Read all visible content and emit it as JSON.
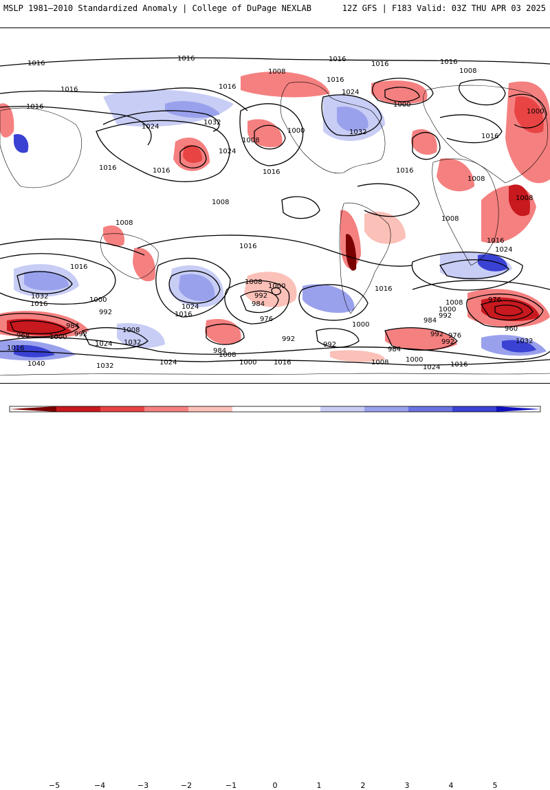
{
  "header": {
    "left_title": "MSLP 1981–2010 Standardized Anomaly | College of DuPage NEXLAB",
    "right_title": "12Z GFS | F183 Valid: 03Z THU APR 03 2025"
  },
  "colors": {
    "neg5": "#7a0000",
    "neg4": "#c8191e",
    "neg3": "#e84444",
    "neg2": "#f58080",
    "neg1": "#fbc0b8",
    "pos1": "#c8cdf5",
    "pos2": "#9aa1ec",
    "pos3": "#6b72e0",
    "pos4": "#3a42d4",
    "pos5": "#1010c0",
    "contour": "#000000",
    "coast": "#000000"
  },
  "contour_labels": [
    "1016",
    "1016",
    "1016",
    "1016",
    "1016",
    "1016",
    "1016",
    "1008",
    "1016",
    "1024",
    "1000",
    "1008",
    "1016",
    "1016",
    "1032",
    "1024",
    "1008",
    "1000",
    "1032",
    "1016",
    "1000",
    "1016",
    "1024",
    "1016",
    "1016",
    "1008",
    "1008",
    "1008",
    "1008",
    "1016",
    "1024",
    "1016",
    "1032",
    "1008",
    "1000",
    "992",
    "1016",
    "1024",
    "1016",
    "1000",
    "992",
    "984",
    "976",
    "1008",
    "1016",
    "1000",
    "1016",
    "1008",
    "1000",
    "992",
    "984",
    "976",
    "992",
    "960",
    "1032",
    "984",
    "968",
    "1000",
    "992",
    "1024",
    "1032",
    "1008",
    "1016",
    "1040",
    "1032",
    "984",
    "1024",
    "1008",
    "1000",
    "1016",
    "992",
    "992",
    "1008",
    "1000",
    "1016",
    "1024",
    "992",
    "976",
    "984"
  ],
  "colorbar": {
    "labels": [
      "−5",
      "−4",
      "−3",
      "−2",
      "−1",
      "0",
      "1",
      "2",
      "3",
      "4",
      "5"
    ]
  }
}
